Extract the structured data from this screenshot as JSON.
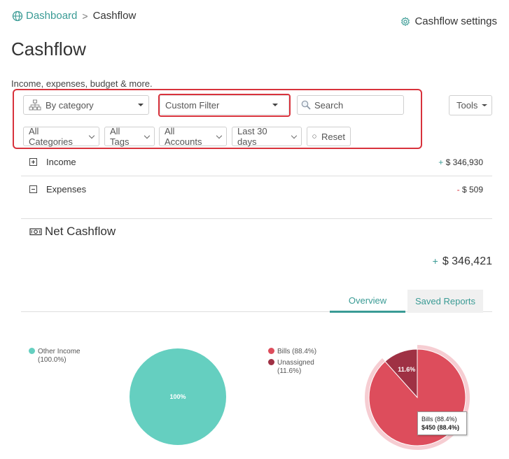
{
  "breadcrumb": {
    "home": "Dashboard",
    "separator": ">",
    "current": "Cashflow"
  },
  "settings_label": "Cashflow settings",
  "page": {
    "title": "Cashflow",
    "subtitle": "Income, expenses, budget & more."
  },
  "filters": {
    "group_by": "By category",
    "custom_filter": "Custom Filter",
    "search_placeholder": "Search",
    "tools": "Tools",
    "categories": "All Categories",
    "tags": "All Tags",
    "accounts": "All Accounts",
    "period": "Last 30 days",
    "reset": "Reset"
  },
  "rows": [
    {
      "label": "Income",
      "sign": "+",
      "amount": "$ 346,930"
    },
    {
      "label": "Expenses",
      "sign": "-",
      "amount": "$ 509"
    }
  ],
  "net": {
    "title": "Net Cashflow",
    "sign": "+",
    "amount": "$ 346,421"
  },
  "tabs": {
    "overview": "Overview",
    "saved": "Saved Reports"
  },
  "colors": {
    "accent": "#3a9b95",
    "income_teal": "#65cfc0",
    "bills_red": "#dd4d5c",
    "unassigned_dark": "#9f3144",
    "highlight_red": "#d8323c"
  },
  "chart_data": [
    {
      "type": "pie",
      "title": "",
      "legend": [
        {
          "name": "Other Income",
          "pct_label": "(100.0%)"
        }
      ],
      "slices": [
        {
          "name": "Other Income",
          "value": 100.0,
          "label": "100%"
        }
      ]
    },
    {
      "type": "pie",
      "title": "",
      "legend": [
        {
          "name": "Bills (88.4%)",
          "pct_label": ""
        },
        {
          "name": "Unassigned",
          "pct_label": "(11.6%)"
        }
      ],
      "slices": [
        {
          "name": "Bills",
          "value": 88.4,
          "label": ""
        },
        {
          "name": "Unassigned",
          "value": 11.6,
          "label": "11.6%"
        }
      ],
      "tooltip": {
        "line1": "Bills (88.4%)",
        "line2": "$450 (88.4%)"
      }
    }
  ]
}
